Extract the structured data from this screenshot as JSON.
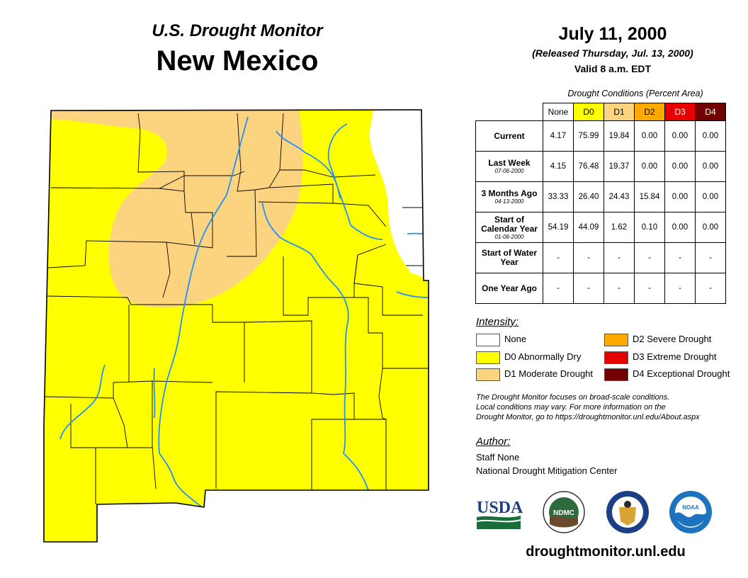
{
  "header": {
    "subtitle": "U.S. Drought Monitor",
    "state": "New Mexico",
    "date": "July 11, 2000",
    "released": "(Released Thursday, Jul. 13, 2000)",
    "valid": "Valid 8 a.m. EDT"
  },
  "table": {
    "caption": "Drought Conditions (Percent Area)",
    "columns": [
      "None",
      "D0",
      "D1",
      "D2",
      "D3",
      "D4"
    ],
    "column_colors": [
      "#ffffff",
      "#ffff00",
      "#fcd37f",
      "#ffaa00",
      "#e60000",
      "#730000"
    ],
    "rows": [
      {
        "label": "Current",
        "date": "",
        "values": [
          "4.17",
          "75.99",
          "19.84",
          "0.00",
          "0.00",
          "0.00"
        ]
      },
      {
        "label": "Last Week",
        "date": "07-06-2000",
        "values": [
          "4.15",
          "76.48",
          "19.37",
          "0.00",
          "0.00",
          "0.00"
        ]
      },
      {
        "label": "3 Months Ago",
        "date": "04-13-2000",
        "values": [
          "33.33",
          "26.40",
          "24.43",
          "15.84",
          "0.00",
          "0.00"
        ]
      },
      {
        "label": "Start of Calendar Year",
        "date": "01-06-2000",
        "values": [
          "54.19",
          "44.09",
          "1.62",
          "0.10",
          "0.00",
          "0.00"
        ]
      },
      {
        "label": "Start of Water Year",
        "date": "",
        "values": [
          "-",
          "-",
          "-",
          "-",
          "-",
          "-"
        ]
      },
      {
        "label": "One Year Ago",
        "date": "",
        "values": [
          "-",
          "-",
          "-",
          "-",
          "-",
          "-"
        ]
      }
    ]
  },
  "legend": {
    "title": "Intensity:",
    "items": [
      {
        "label": "None",
        "color": "#ffffff"
      },
      {
        "label": "D0 Abnormally Dry",
        "color": "#ffff00"
      },
      {
        "label": "D1 Moderate Drought",
        "color": "#fcd37f"
      },
      {
        "label": "D2 Severe Drought",
        "color": "#ffaa00"
      },
      {
        "label": "D3 Extreme Drought",
        "color": "#e60000"
      },
      {
        "label": "D4 Exceptional Drought",
        "color": "#730000"
      }
    ]
  },
  "note": {
    "line1": "The Drought Monitor focuses on broad-scale conditions.",
    "line2": "Local conditions may vary. For more information on the",
    "line3": "Drought Monitor, go to https://droughtmonitor.unl.edu/About.aspx"
  },
  "author": {
    "title": "Author:",
    "name": "Staff None",
    "org": "National Drought Mitigation Center"
  },
  "logos": {
    "usda": "USDA",
    "ndmc": "NDMC",
    "noaa": "NOAA"
  },
  "website": "droughtmonitor.unl.edu"
}
